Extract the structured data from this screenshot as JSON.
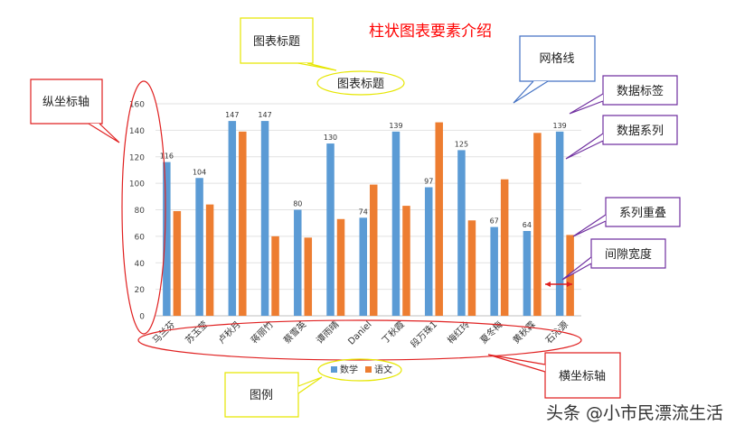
{
  "page_title": "柱状图表要素介绍",
  "chart_data": {
    "type": "bar",
    "title": "图表标题",
    "categories": [
      "马兰芬",
      "苏玉莹",
      "卢秋月",
      "蒋丽竹",
      "蔡雪英",
      "谭雨晴",
      "Daniel",
      "丁秋霞",
      "段万珠1",
      "梅红玲",
      "夏冬梅",
      "黄秋霖",
      "石沁源"
    ],
    "series": [
      {
        "name": "数学",
        "color": "#5b9bd5",
        "values": [
          116,
          104,
          147,
          147,
          80,
          130,
          74,
          139,
          97,
          125,
          67,
          64,
          139
        ]
      },
      {
        "name": "语文",
        "color": "#ed7d31",
        "values": [
          79,
          84,
          139,
          60,
          59,
          73,
          99,
          83,
          146,
          72,
          103,
          138,
          61
        ]
      }
    ],
    "data_labels_series": "数学",
    "yticks": [
      0,
      20,
      40,
      60,
      80,
      100,
      120,
      140,
      160
    ],
    "ylim": [
      0,
      160
    ],
    "grid": true,
    "legend_position": "bottom"
  },
  "annotations": {
    "chart_title": "图表标题",
    "gridlines": "网格线",
    "y_axis": "纵坐标轴",
    "data_labels": "数据标签",
    "data_series": "数据系列",
    "overlap": "系列重叠",
    "gap_width": "间隙宽度",
    "x_axis": "横坐标轴",
    "legend": "图例"
  },
  "watermark": "头条 @小市民漂流生活"
}
